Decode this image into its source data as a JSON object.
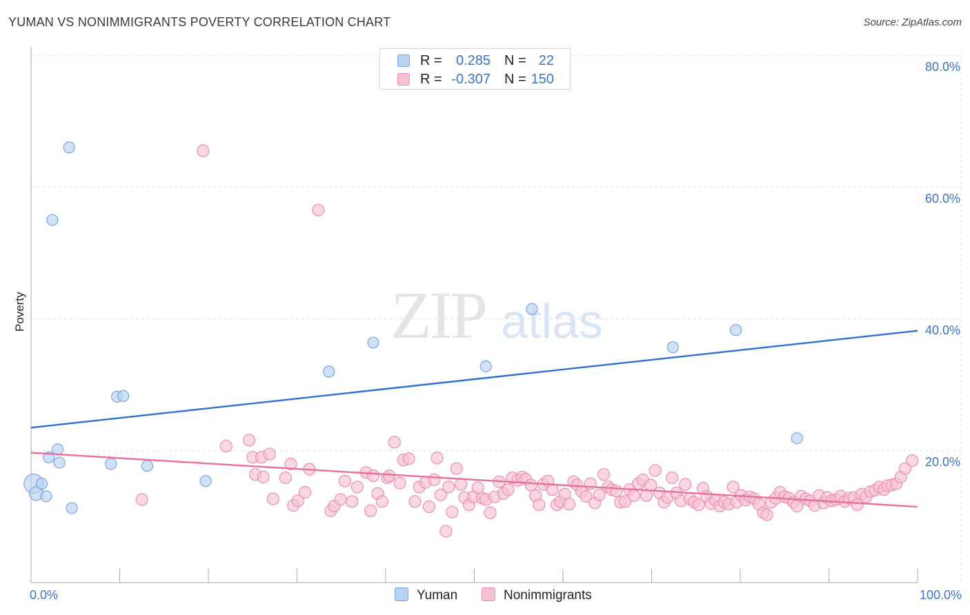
{
  "header": {
    "title": "YUMAN VS NONIMMIGRANTS POVERTY CORRELATION CHART",
    "source": "Source: ZipAtlas.com"
  },
  "watermark": {
    "zip": "ZIP",
    "atlas": "atlas"
  },
  "legend": {
    "rows": [
      {
        "r_label": "R =",
        "r_value": "0.285",
        "n_label": "N =",
        "n_value": "22"
      },
      {
        "r_label": "R =",
        "r_value": "-0.307",
        "n_label": "N =",
        "n_value": "150"
      }
    ]
  },
  "bottom_legend": {
    "series1": "Yuman",
    "series2": "Nonimmigrants"
  },
  "colors": {
    "yuman_fill": "#b9d2f2",
    "yuman_stroke": "#7aa6de",
    "yuman_line": "#2f6fd0",
    "nonimm_fill": "#f7c1d2",
    "nonimm_stroke": "#ec8eaf",
    "nonimm_line": "#e8709c",
    "grid": "#dcdcdc",
    "tick_label": "#3b72c8"
  },
  "chart_data": {
    "type": "scatter",
    "title": "YUMAN VS NONIMMIGRANTS POVERTY CORRELATION CHART",
    "xlabel": "",
    "ylabel": "Poverty",
    "xlim": [
      0,
      100
    ],
    "ylim": [
      0,
      80
    ],
    "x_tick_labels": [
      "0.0%",
      "100.0%"
    ],
    "y_ticks": [
      20,
      40,
      60,
      80
    ],
    "y_tick_labels": [
      "20.0%",
      "40.0%",
      "60.0%",
      "80.0%"
    ],
    "grid": true,
    "legend_position": "top-center",
    "series": [
      {
        "name": "Yuman",
        "R": 0.285,
        "N": 22,
        "trend": {
          "x": [
            0,
            100
          ],
          "y": [
            23.5,
            38.2
          ]
        },
        "points": [
          {
            "x": 0.3,
            "y": 15.0,
            "s": 14
          },
          {
            "x": 0.6,
            "y": 13.5,
            "s": 10
          },
          {
            "x": 1.2,
            "y": 15.0,
            "s": 8
          },
          {
            "x": 1.7,
            "y": 13.1,
            "s": 8
          },
          {
            "x": 2.0,
            "y": 19.0,
            "s": 8
          },
          {
            "x": 2.4,
            "y": 55.0,
            "s": 8
          },
          {
            "x": 3.0,
            "y": 20.2,
            "s": 8
          },
          {
            "x": 3.2,
            "y": 18.2,
            "s": 8
          },
          {
            "x": 4.3,
            "y": 66.0,
            "s": 8
          },
          {
            "x": 4.6,
            "y": 11.3,
            "s": 8
          },
          {
            "x": 9.0,
            "y": 18.0,
            "s": 8
          },
          {
            "x": 9.7,
            "y": 28.2,
            "s": 8
          },
          {
            "x": 10.4,
            "y": 28.3,
            "s": 8
          },
          {
            "x": 13.1,
            "y": 17.7,
            "s": 8
          },
          {
            "x": 19.7,
            "y": 15.4,
            "s": 8
          },
          {
            "x": 33.6,
            "y": 32.0,
            "s": 8
          },
          {
            "x": 38.6,
            "y": 36.4,
            "s": 8
          },
          {
            "x": 51.3,
            "y": 32.8,
            "s": 8
          },
          {
            "x": 56.5,
            "y": 41.5,
            "s": 8
          },
          {
            "x": 72.4,
            "y": 35.7,
            "s": 8
          },
          {
            "x": 79.5,
            "y": 38.3,
            "s": 8
          },
          {
            "x": 86.4,
            "y": 21.9,
            "s": 8
          }
        ]
      },
      {
        "name": "Nonimmigrants",
        "R": -0.307,
        "N": 150,
        "trend": {
          "x": [
            0,
            100
          ],
          "y": [
            19.7,
            11.5
          ]
        },
        "points": [
          {
            "x": 12.5,
            "y": 12.6
          },
          {
            "x": 19.4,
            "y": 65.5
          },
          {
            "x": 22.0,
            "y": 20.7
          },
          {
            "x": 24.6,
            "y": 21.6
          },
          {
            "x": 25.0,
            "y": 19.0
          },
          {
            "x": 25.3,
            "y": 16.4
          },
          {
            "x": 26.0,
            "y": 19.0
          },
          {
            "x": 26.2,
            "y": 16.0
          },
          {
            "x": 26.9,
            "y": 19.5
          },
          {
            "x": 27.3,
            "y": 12.7
          },
          {
            "x": 28.7,
            "y": 15.9
          },
          {
            "x": 29.3,
            "y": 18.0
          },
          {
            "x": 29.6,
            "y": 11.7
          },
          {
            "x": 30.1,
            "y": 12.4
          },
          {
            "x": 30.9,
            "y": 13.7
          },
          {
            "x": 31.4,
            "y": 17.2
          },
          {
            "x": 32.4,
            "y": 56.5
          },
          {
            "x": 33.8,
            "y": 10.9
          },
          {
            "x": 34.2,
            "y": 11.6
          },
          {
            "x": 34.9,
            "y": 12.6
          },
          {
            "x": 35.4,
            "y": 15.4
          },
          {
            "x": 36.2,
            "y": 12.3
          },
          {
            "x": 36.8,
            "y": 14.5
          },
          {
            "x": 37.8,
            "y": 16.7
          },
          {
            "x": 38.3,
            "y": 10.9
          },
          {
            "x": 38.6,
            "y": 16.2
          },
          {
            "x": 39.1,
            "y": 13.5
          },
          {
            "x": 39.6,
            "y": 12.3
          },
          {
            "x": 40.2,
            "y": 15.9
          },
          {
            "x": 40.4,
            "y": 16.2
          },
          {
            "x": 41.0,
            "y": 21.3
          },
          {
            "x": 41.6,
            "y": 15.1
          },
          {
            "x": 42.0,
            "y": 18.6
          },
          {
            "x": 42.6,
            "y": 18.8
          },
          {
            "x": 43.3,
            "y": 12.3
          },
          {
            "x": 43.8,
            "y": 14.5
          },
          {
            "x": 44.5,
            "y": 15.2
          },
          {
            "x": 44.9,
            "y": 11.5
          },
          {
            "x": 45.5,
            "y": 15.6
          },
          {
            "x": 45.8,
            "y": 18.9
          },
          {
            "x": 46.2,
            "y": 13.3
          },
          {
            "x": 46.8,
            "y": 7.8
          },
          {
            "x": 47.1,
            "y": 14.5
          },
          {
            "x": 47.5,
            "y": 10.7
          },
          {
            "x": 48.0,
            "y": 17.3
          },
          {
            "x": 48.5,
            "y": 14.9
          },
          {
            "x": 48.9,
            "y": 12.9
          },
          {
            "x": 49.4,
            "y": 11.8
          },
          {
            "x": 49.9,
            "y": 13.0
          },
          {
            "x": 50.4,
            "y": 14.4
          },
          {
            "x": 50.9,
            "y": 12.8
          },
          {
            "x": 51.3,
            "y": 12.6
          },
          {
            "x": 51.8,
            "y": 10.6
          },
          {
            "x": 52.3,
            "y": 13.0
          },
          {
            "x": 52.8,
            "y": 15.3
          },
          {
            "x": 53.3,
            "y": 13.5
          },
          {
            "x": 53.8,
            "y": 14.1
          },
          {
            "x": 54.3,
            "y": 15.9
          },
          {
            "x": 54.9,
            "y": 15.5
          },
          {
            "x": 55.4,
            "y": 16.0
          },
          {
            "x": 55.8,
            "y": 15.7
          },
          {
            "x": 56.4,
            "y": 14.8
          },
          {
            "x": 56.9,
            "y": 13.2
          },
          {
            "x": 57.3,
            "y": 11.8
          },
          {
            "x": 57.8,
            "y": 14.9
          },
          {
            "x": 58.3,
            "y": 15.4
          },
          {
            "x": 58.8,
            "y": 14.1
          },
          {
            "x": 59.3,
            "y": 11.8
          },
          {
            "x": 59.7,
            "y": 12.3
          },
          {
            "x": 60.2,
            "y": 13.4
          },
          {
            "x": 60.7,
            "y": 11.9
          },
          {
            "x": 61.2,
            "y": 15.3
          },
          {
            "x": 61.6,
            "y": 14.8
          },
          {
            "x": 62.1,
            "y": 13.8
          },
          {
            "x": 62.6,
            "y": 13.1
          },
          {
            "x": 63.1,
            "y": 15.0
          },
          {
            "x": 63.6,
            "y": 12.1
          },
          {
            "x": 64.1,
            "y": 13.3
          },
          {
            "x": 64.6,
            "y": 16.4
          },
          {
            "x": 65.1,
            "y": 14.5
          },
          {
            "x": 65.5,
            "y": 14.1
          },
          {
            "x": 66.0,
            "y": 13.9
          },
          {
            "x": 66.5,
            "y": 12.2
          },
          {
            "x": 67.0,
            "y": 12.3
          },
          {
            "x": 67.5,
            "y": 14.1
          },
          {
            "x": 68.0,
            "y": 13.2
          },
          {
            "x": 68.5,
            "y": 15.0
          },
          {
            "x": 69.0,
            "y": 15.6
          },
          {
            "x": 69.4,
            "y": 13.2
          },
          {
            "x": 69.9,
            "y": 14.8
          },
          {
            "x": 70.4,
            "y": 17.0
          },
          {
            "x": 70.9,
            "y": 13.6
          },
          {
            "x": 71.4,
            "y": 12.2
          },
          {
            "x": 71.8,
            "y": 12.9
          },
          {
            "x": 72.3,
            "y": 15.9
          },
          {
            "x": 72.8,
            "y": 13.6
          },
          {
            "x": 73.3,
            "y": 12.4
          },
          {
            "x": 73.8,
            "y": 14.9
          },
          {
            "x": 74.3,
            "y": 12.7
          },
          {
            "x": 74.8,
            "y": 12.2
          },
          {
            "x": 75.3,
            "y": 11.8
          },
          {
            "x": 75.8,
            "y": 14.3
          },
          {
            "x": 76.2,
            "y": 13.1
          },
          {
            "x": 76.7,
            "y": 12.0
          },
          {
            "x": 77.2,
            "y": 12.5
          },
          {
            "x": 77.7,
            "y": 11.6
          },
          {
            "x": 78.2,
            "y": 12.2
          },
          {
            "x": 78.7,
            "y": 11.9
          },
          {
            "x": 79.2,
            "y": 14.5
          },
          {
            "x": 79.6,
            "y": 12.2
          },
          {
            "x": 80.1,
            "y": 13.2
          },
          {
            "x": 80.6,
            "y": 12.5
          },
          {
            "x": 81.1,
            "y": 13.0
          },
          {
            "x": 81.6,
            "y": 12.7
          },
          {
            "x": 82.1,
            "y": 11.9
          },
          {
            "x": 82.6,
            "y": 10.6
          },
          {
            "x": 83.0,
            "y": 10.3
          },
          {
            "x": 83.5,
            "y": 12.2
          },
          {
            "x": 84.0,
            "y": 12.8
          },
          {
            "x": 84.5,
            "y": 13.7
          },
          {
            "x": 85.0,
            "y": 13.0
          },
          {
            "x": 85.5,
            "y": 12.8
          },
          {
            "x": 86.0,
            "y": 12.2
          },
          {
            "x": 86.4,
            "y": 11.6
          },
          {
            "x": 86.9,
            "y": 13.1
          },
          {
            "x": 87.4,
            "y": 12.7
          },
          {
            "x": 87.9,
            "y": 12.4
          },
          {
            "x": 88.4,
            "y": 11.7
          },
          {
            "x": 88.9,
            "y": 13.2
          },
          {
            "x": 89.4,
            "y": 12.1
          },
          {
            "x": 89.8,
            "y": 12.9
          },
          {
            "x": 90.3,
            "y": 12.4
          },
          {
            "x": 90.8,
            "y": 12.6
          },
          {
            "x": 91.3,
            "y": 13.1
          },
          {
            "x": 91.8,
            "y": 12.3
          },
          {
            "x": 92.3,
            "y": 12.8
          },
          {
            "x": 92.8,
            "y": 12.9
          },
          {
            "x": 93.2,
            "y": 11.8
          },
          {
            "x": 93.7,
            "y": 13.4
          },
          {
            "x": 94.2,
            "y": 13.0
          },
          {
            "x": 94.7,
            "y": 13.8
          },
          {
            "x": 95.2,
            "y": 14.0
          },
          {
            "x": 95.7,
            "y": 14.5
          },
          {
            "x": 96.2,
            "y": 14.1
          },
          {
            "x": 96.6,
            "y": 14.7
          },
          {
            "x": 97.1,
            "y": 14.8
          },
          {
            "x": 97.6,
            "y": 15.0
          },
          {
            "x": 98.1,
            "y": 16.0
          },
          {
            "x": 98.6,
            "y": 17.3
          },
          {
            "x": 99.4,
            "y": 18.5
          }
        ]
      }
    ]
  }
}
